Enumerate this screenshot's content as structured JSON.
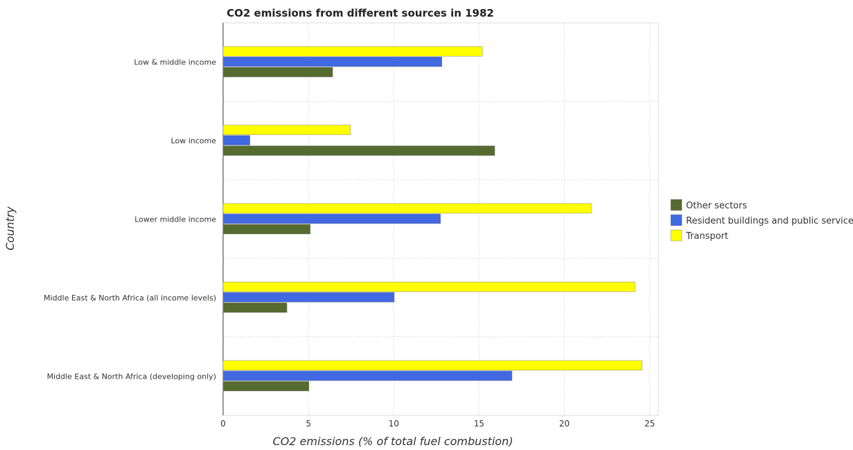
{
  "chart_data": {
    "type": "bar",
    "orientation": "horizontal",
    "title": "CO2 emissions from different sources in 1982",
    "xlabel": "CO2 emissions (% of total fuel combustion)",
    "ylabel": "Country",
    "xlim": [
      0,
      25.5
    ],
    "xticks": [
      0,
      5,
      10,
      15,
      20,
      25
    ],
    "grid": true,
    "legend_position": "right",
    "categories": [
      "Low & middle income",
      "Low income",
      "Lower middle income",
      "Middle East & North Africa (all income levels)",
      "Middle East & North Africa (developing only)"
    ],
    "series": [
      {
        "name": "Other sectors",
        "color": "#556b2f",
        "values": [
          6.42,
          15.92,
          5.11,
          3.74,
          5.03
        ]
      },
      {
        "name": "Resident buildings and public services",
        "color": "#4169e1",
        "values": [
          12.82,
          1.57,
          12.74,
          10.03,
          16.93
        ]
      },
      {
        "name": "Transport",
        "color": "#ffff00",
        "values": [
          15.19,
          7.46,
          21.57,
          24.14,
          24.55
        ]
      }
    ]
  }
}
